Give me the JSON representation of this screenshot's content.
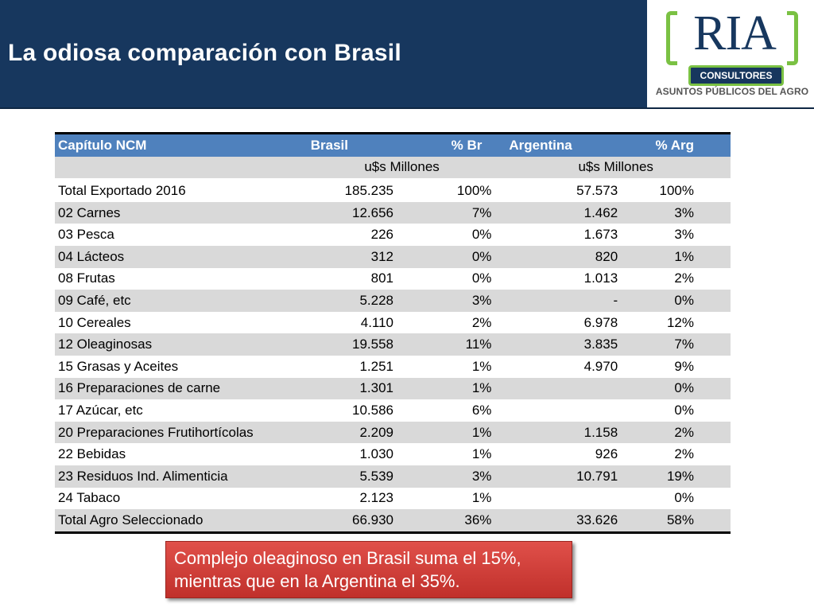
{
  "header": {
    "title": "La odiosa comparación con Brasil"
  },
  "logo": {
    "name": "RIA",
    "badge": "CONSULTORES",
    "tagline": "ASUNTOS PÚBLICOS DEL AGRO",
    "colors": {
      "navy": "#17375e",
      "green": "#7ac143"
    }
  },
  "table": {
    "headers": [
      "Capítulo NCM",
      "Brasil",
      "% Br",
      "Argentina",
      "% Arg"
    ],
    "units": {
      "brasil": "u$s Millones",
      "argentina": "u$s Millones"
    },
    "rows": [
      [
        "Total Exportado 2016",
        "185.235",
        "100%",
        "57.573",
        "100%"
      ],
      [
        "02 Carnes",
        "12.656",
        "7%",
        "1.462",
        "3%"
      ],
      [
        "03 Pesca",
        "226",
        "0%",
        "1.673",
        "3%"
      ],
      [
        "04 Lácteos",
        "312",
        "0%",
        "820",
        "1%"
      ],
      [
        "08 Frutas",
        "801",
        "0%",
        "1.013",
        "2%"
      ],
      [
        "09 Café, etc",
        "5.228",
        "3%",
        "-",
        "0%"
      ],
      [
        "10 Cereales",
        "4.110",
        "2%",
        "6.978",
        "12%"
      ],
      [
        "12 Oleaginosas",
        "19.558",
        "11%",
        "3.835",
        "7%"
      ],
      [
        "15 Grasas y Aceites",
        "1.251",
        "1%",
        "4.970",
        "9%"
      ],
      [
        "16 Preparaciones de carne",
        "1.301",
        "1%",
        "",
        "0%"
      ],
      [
        "17 Azúcar, etc",
        "10.586",
        "6%",
        "",
        "0%"
      ],
      [
        "20 Preparaciones Frutihortícolas",
        "2.209",
        "1%",
        "1.158",
        "2%"
      ],
      [
        "22 Bebidas",
        "1.030",
        "1%",
        "926",
        "2%"
      ],
      [
        "23 Residuos Ind. Alimenticia",
        "5.539",
        "3%",
        "10.791",
        "19%"
      ],
      [
        "24 Tabaco",
        "2.123",
        "1%",
        "",
        "0%"
      ],
      [
        "Total Agro Seleccionado",
        "66.930",
        "36%",
        "33.626",
        "58%"
      ]
    ],
    "colors": {
      "header_bg": "#4f81bd",
      "band_bg": "#d9d9d9"
    }
  },
  "callout": {
    "line1": "Complejo oleaginoso en Brasil suma el 15%,",
    "line2": "mientras que en la Argentina el 35%.",
    "color": "#d0413c"
  }
}
